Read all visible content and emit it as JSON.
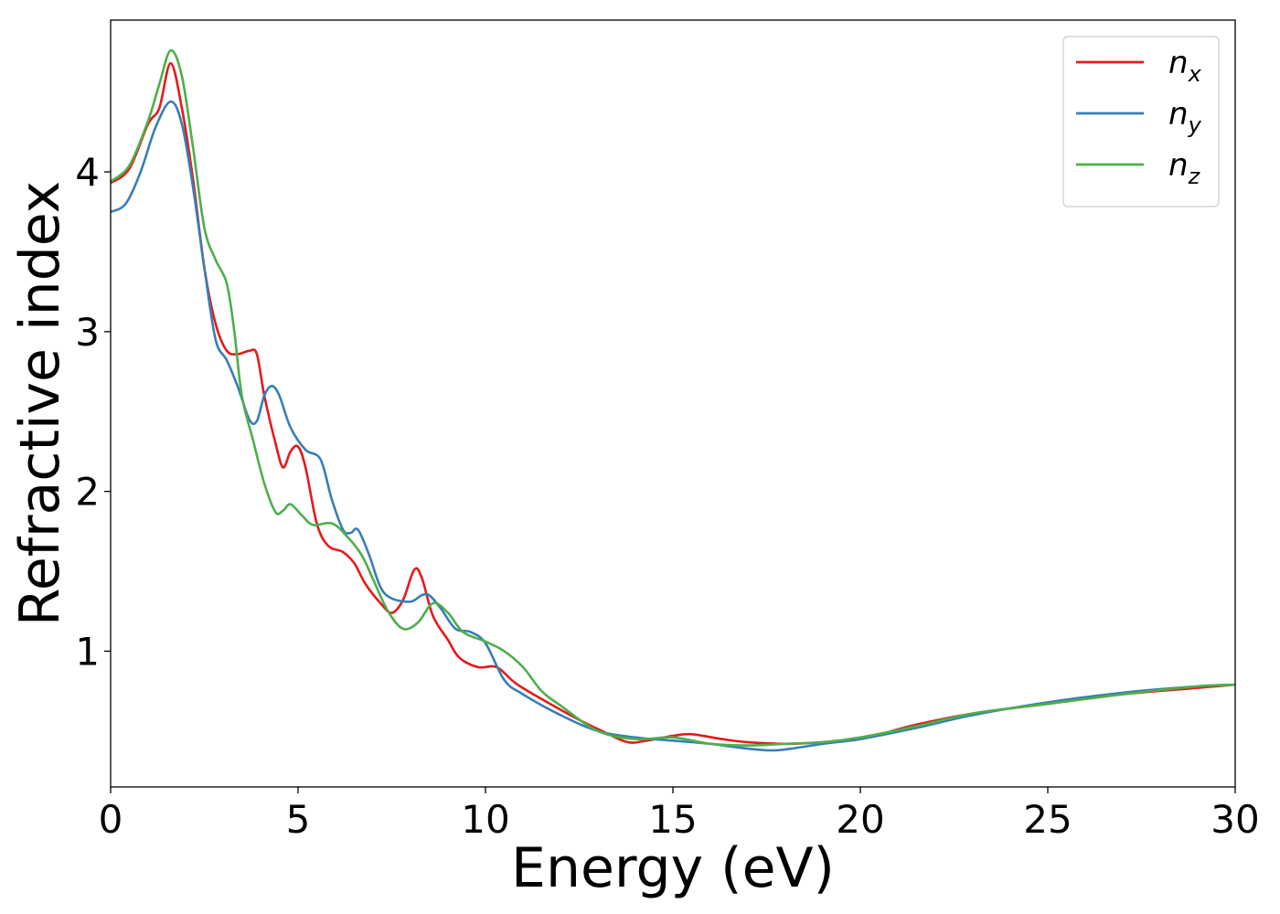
{
  "chart_data": {
    "type": "line",
    "xlabel": "Energy (eV)",
    "ylabel": "Refractive index",
    "xlim": [
      0,
      30
    ],
    "ylim": [
      0.15,
      4.95
    ],
    "xticks": [
      0,
      5,
      10,
      15,
      20,
      25,
      30
    ],
    "yticks": [
      1,
      2,
      3,
      4
    ],
    "grid": false,
    "legend_position": "top-right",
    "series": [
      {
        "name": "n_x",
        "label_main": "n",
        "label_sub": "x",
        "color": "#e41a1c",
        "points": [
          [
            0,
            3.93
          ],
          [
            0.5,
            4.02
          ],
          [
            1.0,
            4.3
          ],
          [
            1.3,
            4.4
          ],
          [
            1.6,
            4.68
          ],
          [
            1.9,
            4.4
          ],
          [
            2.2,
            3.95
          ],
          [
            2.5,
            3.4
          ],
          [
            2.8,
            3.05
          ],
          [
            3.1,
            2.88
          ],
          [
            3.4,
            2.86
          ],
          [
            3.7,
            2.88
          ],
          [
            3.9,
            2.86
          ],
          [
            4.1,
            2.6
          ],
          [
            4.4,
            2.3
          ],
          [
            4.6,
            2.15
          ],
          [
            4.8,
            2.25
          ],
          [
            5.0,
            2.28
          ],
          [
            5.2,
            2.15
          ],
          [
            5.5,
            1.8
          ],
          [
            5.8,
            1.66
          ],
          [
            6.2,
            1.62
          ],
          [
            6.5,
            1.55
          ],
          [
            6.8,
            1.42
          ],
          [
            7.2,
            1.3
          ],
          [
            7.5,
            1.24
          ],
          [
            7.8,
            1.32
          ],
          [
            8.1,
            1.51
          ],
          [
            8.3,
            1.46
          ],
          [
            8.6,
            1.22
          ],
          [
            9.0,
            1.07
          ],
          [
            9.3,
            0.96
          ],
          [
            9.8,
            0.9
          ],
          [
            10.3,
            0.9
          ],
          [
            10.8,
            0.8
          ],
          [
            11.5,
            0.7
          ],
          [
            12.5,
            0.57
          ],
          [
            13.2,
            0.49
          ],
          [
            13.8,
            0.43
          ],
          [
            14.3,
            0.44
          ],
          [
            15.0,
            0.47
          ],
          [
            15.5,
            0.48
          ],
          [
            16.3,
            0.45
          ],
          [
            17.0,
            0.43
          ],
          [
            18.0,
            0.42
          ],
          [
            19.0,
            0.43
          ],
          [
            20.0,
            0.45
          ],
          [
            21.5,
            0.54
          ],
          [
            23.0,
            0.61
          ],
          [
            25.0,
            0.67
          ],
          [
            27.0,
            0.73
          ],
          [
            29.0,
            0.77
          ],
          [
            30.0,
            0.79
          ]
        ]
      },
      {
        "name": "n_y",
        "label_main": "n",
        "label_sub": "y",
        "color": "#377eb8",
        "points": [
          [
            0,
            3.75
          ],
          [
            0.4,
            3.8
          ],
          [
            0.8,
            4.0
          ],
          [
            1.2,
            4.28
          ],
          [
            1.6,
            4.44
          ],
          [
            1.9,
            4.3
          ],
          [
            2.2,
            3.9
          ],
          [
            2.5,
            3.4
          ],
          [
            2.8,
            2.95
          ],
          [
            3.1,
            2.82
          ],
          [
            3.4,
            2.65
          ],
          [
            3.7,
            2.45
          ],
          [
            3.9,
            2.44
          ],
          [
            4.1,
            2.6
          ],
          [
            4.3,
            2.66
          ],
          [
            4.5,
            2.6
          ],
          [
            4.8,
            2.4
          ],
          [
            5.2,
            2.26
          ],
          [
            5.6,
            2.2
          ],
          [
            5.9,
            1.95
          ],
          [
            6.2,
            1.76
          ],
          [
            6.4,
            1.74
          ],
          [
            6.6,
            1.76
          ],
          [
            6.9,
            1.6
          ],
          [
            7.2,
            1.4
          ],
          [
            7.5,
            1.33
          ],
          [
            8.0,
            1.31
          ],
          [
            8.3,
            1.35
          ],
          [
            8.5,
            1.35
          ],
          [
            8.8,
            1.27
          ],
          [
            9.2,
            1.14
          ],
          [
            9.6,
            1.12
          ],
          [
            10.0,
            1.05
          ],
          [
            10.5,
            0.82
          ],
          [
            11.0,
            0.73
          ],
          [
            12.0,
            0.6
          ],
          [
            13.0,
            0.5
          ],
          [
            14.0,
            0.46
          ],
          [
            15.0,
            0.44
          ],
          [
            16.0,
            0.42
          ],
          [
            17.0,
            0.39
          ],
          [
            17.8,
            0.38
          ],
          [
            19.0,
            0.42
          ],
          [
            20.0,
            0.45
          ],
          [
            21.5,
            0.52
          ],
          [
            23.0,
            0.6
          ],
          [
            25.0,
            0.68
          ],
          [
            27.0,
            0.74
          ],
          [
            29.0,
            0.78
          ],
          [
            30.0,
            0.79
          ]
        ]
      },
      {
        "name": "n_z",
        "label_main": "n",
        "label_sub": "z",
        "color": "#4daf4a",
        "points": [
          [
            0,
            3.94
          ],
          [
            0.5,
            4.04
          ],
          [
            1.0,
            4.32
          ],
          [
            1.3,
            4.55
          ],
          [
            1.6,
            4.76
          ],
          [
            1.9,
            4.6
          ],
          [
            2.2,
            4.15
          ],
          [
            2.5,
            3.65
          ],
          [
            2.8,
            3.45
          ],
          [
            3.1,
            3.3
          ],
          [
            3.3,
            3.0
          ],
          [
            3.5,
            2.6
          ],
          [
            3.8,
            2.32
          ],
          [
            4.1,
            2.05
          ],
          [
            4.4,
            1.87
          ],
          [
            4.6,
            1.88
          ],
          [
            4.8,
            1.92
          ],
          [
            5.1,
            1.85
          ],
          [
            5.4,
            1.79
          ],
          [
            5.9,
            1.8
          ],
          [
            6.3,
            1.72
          ],
          [
            6.7,
            1.6
          ],
          [
            7.0,
            1.45
          ],
          [
            7.4,
            1.25
          ],
          [
            7.8,
            1.14
          ],
          [
            8.2,
            1.18
          ],
          [
            8.6,
            1.3
          ],
          [
            9.0,
            1.24
          ],
          [
            9.4,
            1.12
          ],
          [
            10.0,
            1.06
          ],
          [
            10.5,
            1.0
          ],
          [
            11.0,
            0.9
          ],
          [
            11.5,
            0.75
          ],
          [
            12.0,
            0.66
          ],
          [
            13.0,
            0.5
          ],
          [
            14.0,
            0.45
          ],
          [
            15.0,
            0.46
          ],
          [
            16.0,
            0.42
          ],
          [
            17.0,
            0.41
          ],
          [
            18.0,
            0.42
          ],
          [
            19.0,
            0.43
          ],
          [
            20.0,
            0.46
          ],
          [
            21.5,
            0.53
          ],
          [
            23.0,
            0.61
          ],
          [
            25.0,
            0.67
          ],
          [
            27.0,
            0.73
          ],
          [
            29.0,
            0.78
          ],
          [
            30.0,
            0.79
          ]
        ]
      }
    ]
  }
}
